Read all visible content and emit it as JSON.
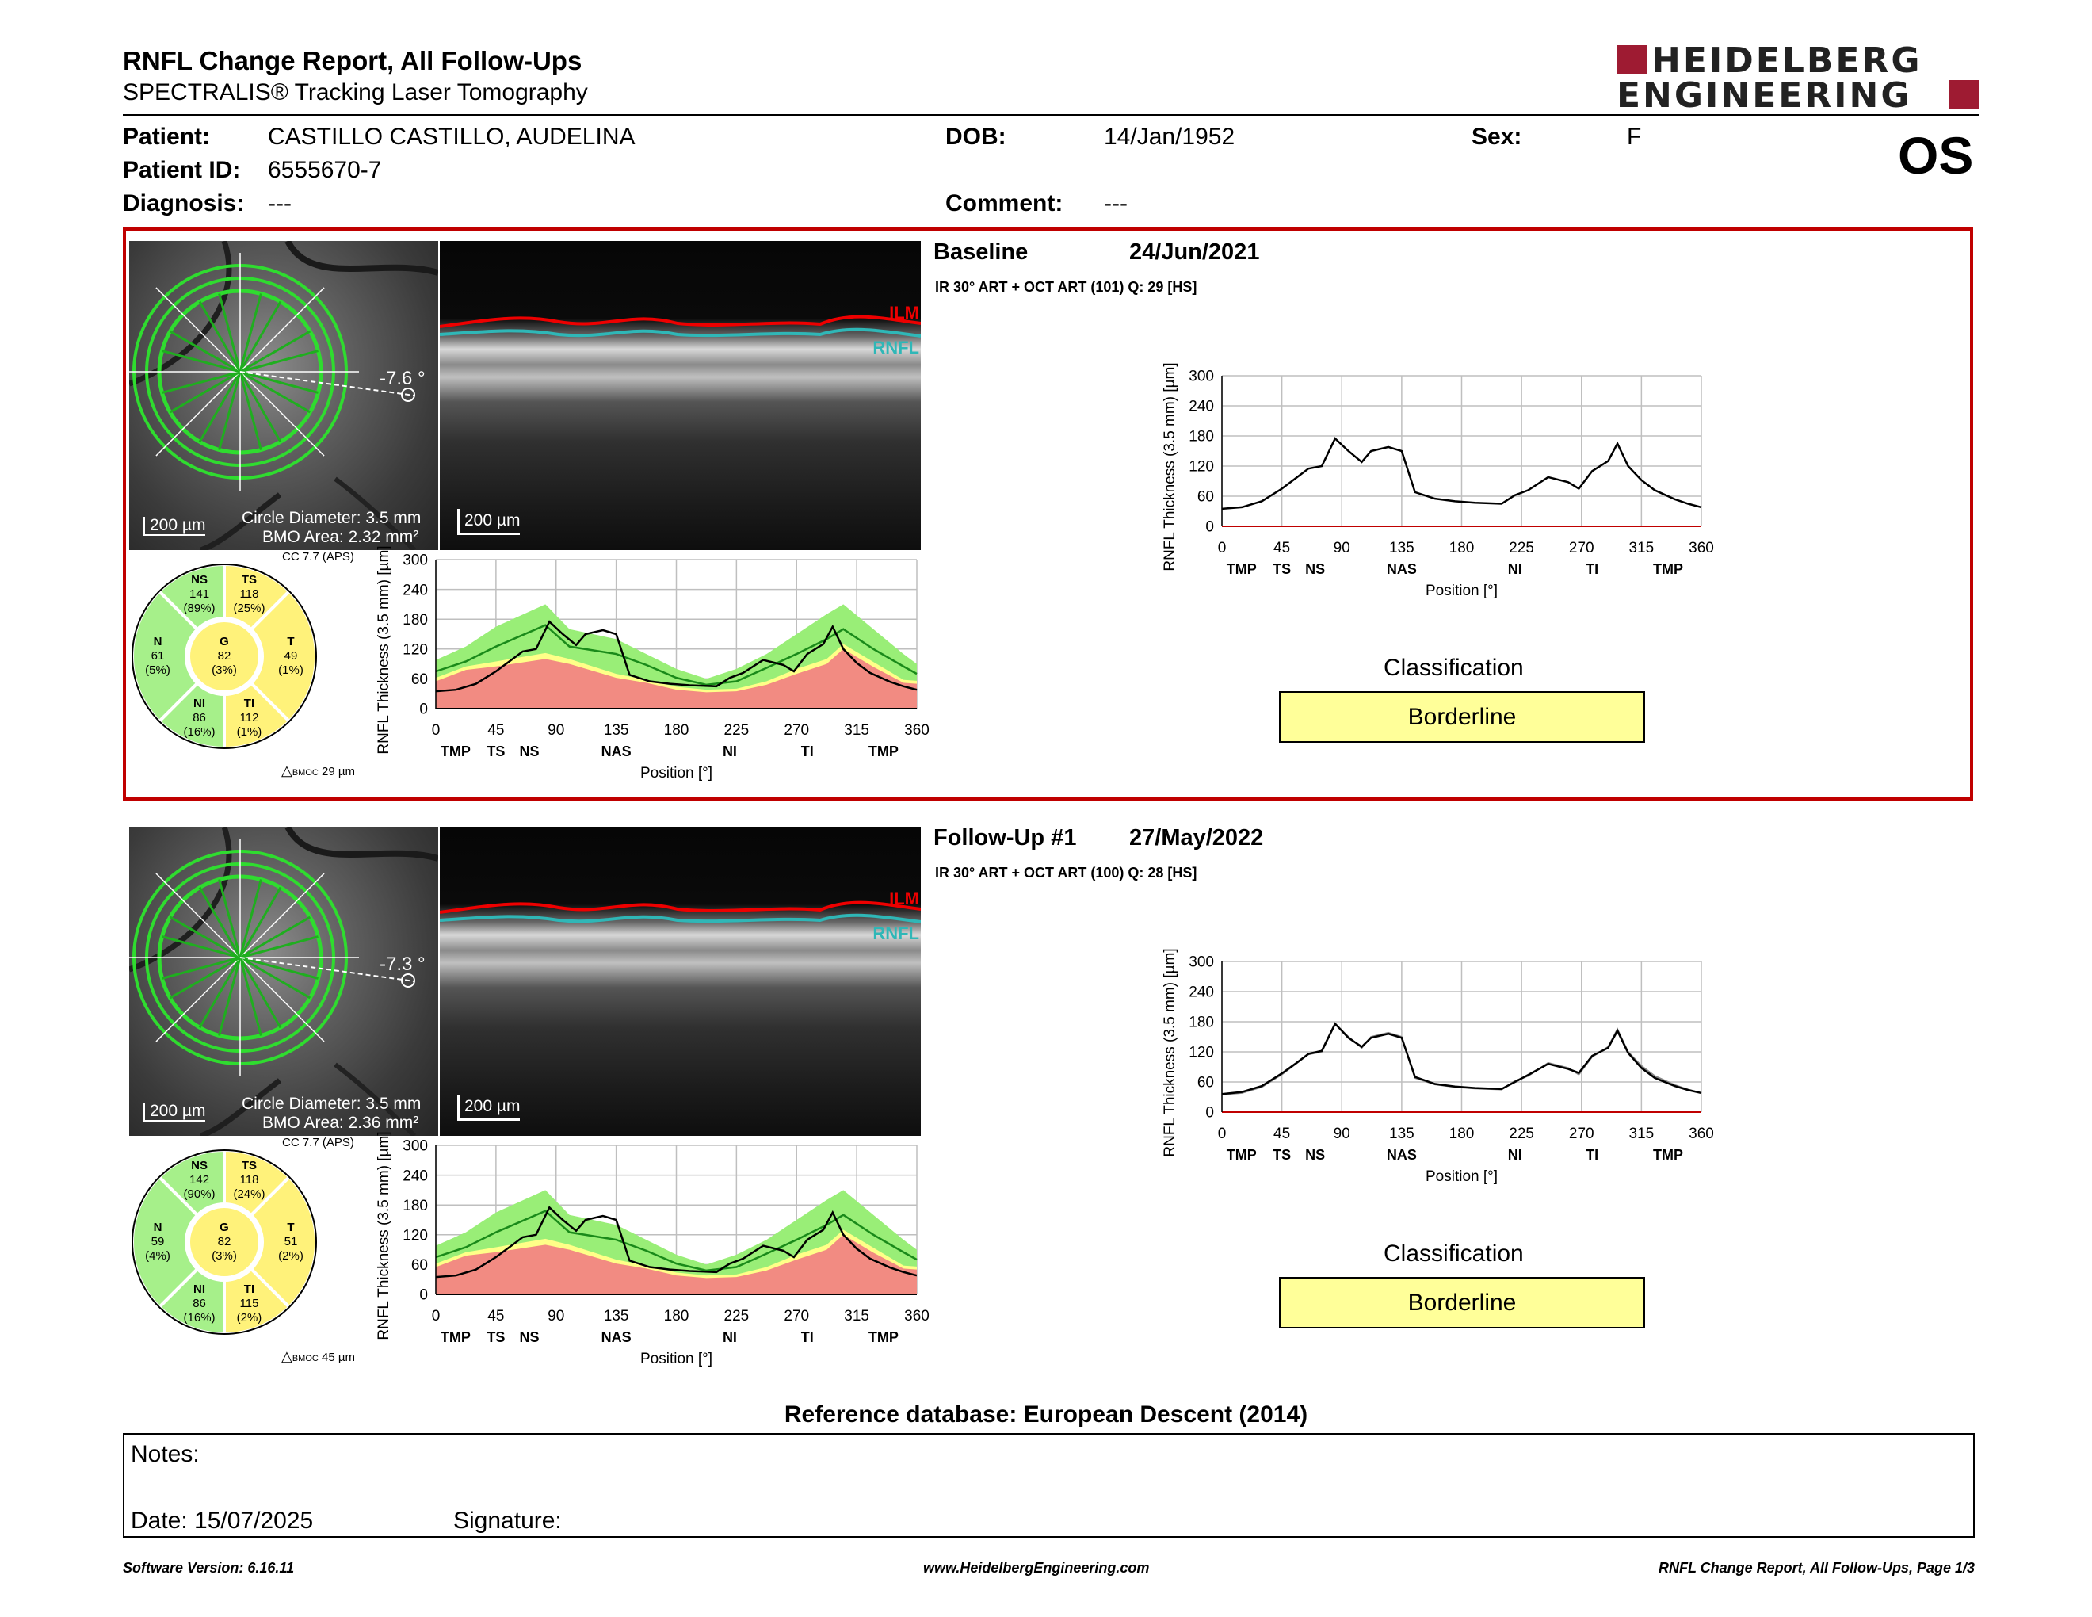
{
  "header": {
    "title": "RNFL Change Report, All Follow-Ups",
    "subtitle": "SPECTRALIS® Tracking Laser Tomography",
    "logo_line1": "HEIDELBERG",
    "logo_line2": "ENGINEERING",
    "eye": "OS"
  },
  "patient": {
    "patient_label": "Patient:",
    "patient_value": "CASTILLO CASTILLO, AUDELINA",
    "id_label": "Patient ID:",
    "id_value": "6555670-7",
    "diagnosis_label": "Diagnosis:",
    "diagnosis_value": "---",
    "dob_label": "DOB:",
    "dob_value": "14/Jan/1952",
    "comment_label": "Comment:",
    "comment_value": "---",
    "sex_label": "Sex:",
    "sex_value": "F"
  },
  "exams": [
    {
      "heading": "Baseline",
      "date": "24/Jun/2021",
      "acquisition": "IR 30° ART + OCT ART (101) Q: 29 [HS]",
      "angle": "-7.6 °",
      "scale_fundus": "200 µm",
      "scale_oct": "200 µm",
      "circle_diameter": "Circle Diameter: 3.5 mm",
      "bmo_area": "BMO Area: 2.32 mm²",
      "cc": "CC 7.7 (APS)",
      "bmoc_prefix": "BMOC",
      "bmoc_value": "29 µm",
      "classification_label": "Classification",
      "classification": "Borderline",
      "sectors": {
        "NS": {
          "name": "NS",
          "value": "141",
          "pct": "(89%)"
        },
        "TS": {
          "name": "TS",
          "value": "118",
          "pct": "(25%)"
        },
        "N": {
          "name": "N",
          "value": "61",
          "pct": "(5%)"
        },
        "G": {
          "name": "G",
          "value": "82",
          "pct": "(3%)"
        },
        "T": {
          "name": "T",
          "value": "49",
          "pct": "(1%)"
        },
        "NI": {
          "name": "NI",
          "value": "86",
          "pct": "(16%)"
        },
        "TI": {
          "name": "TI",
          "value": "112",
          "pct": "(1%)"
        }
      }
    },
    {
      "heading": "Follow-Up #1",
      "date": "27/May/2022",
      "acquisition": "IR 30° ART + OCT ART (100) Q: 28 [HS]",
      "angle": "-7.3 °",
      "scale_fundus": "200 µm",
      "scale_oct": "200 µm",
      "circle_diameter": "Circle Diameter: 3.5 mm",
      "bmo_area": "BMO Area: 2.36 mm²",
      "cc": "CC 7.7 (APS)",
      "bmoc_prefix": "BMOC",
      "bmoc_value": "45 µm",
      "classification_label": "Classification",
      "classification": "Borderline",
      "sectors": {
        "NS": {
          "name": "NS",
          "value": "142",
          "pct": "(90%)"
        },
        "TS": {
          "name": "TS",
          "value": "118",
          "pct": "(24%)"
        },
        "N": {
          "name": "N",
          "value": "59",
          "pct": "(4%)"
        },
        "G": {
          "name": "G",
          "value": "82",
          "pct": "(3%)"
        },
        "T": {
          "name": "T",
          "value": "51",
          "pct": "(2%)"
        },
        "NI": {
          "name": "NI",
          "value": "86",
          "pct": "(16%)"
        },
        "TI": {
          "name": "TI",
          "value": "115",
          "pct": "(2%)"
        }
      }
    }
  ],
  "oct_labels": {
    "ilm": "ILM",
    "rnfl": "RNFL"
  },
  "colors": {
    "accent_red": "#c00000",
    "normal_green": "#99ee77",
    "borderline_yellow": "#ffff88",
    "outside_red": "#f28b82",
    "brand": "#9e1b32"
  },
  "chart_data": [
    {
      "type": "line",
      "title": "",
      "ylabel": "RNFL Thickness (3.5 mm) [µm]",
      "xlabel": "Position [°]",
      "ylim": [
        0,
        300
      ],
      "xlim": [
        0,
        360
      ],
      "yticks": [
        "0",
        "60",
        "120",
        "180",
        "240",
        "300"
      ],
      "xticks": [
        "0",
        "45",
        "90",
        "135",
        "180",
        "225",
        "270",
        "315",
        "360"
      ],
      "sector_labels": [
        "TMP",
        "TS",
        "NS",
        "NAS",
        "NI",
        "TI",
        "TMP"
      ],
      "bands": {
        "outside_limit_upper": [
          55,
          78,
          85,
          100,
          90,
          62,
          52,
          38,
          33,
          35,
          48,
          70,
          90,
          120,
          84,
          52,
          50
        ],
        "borderline_upper": [
          62,
          85,
          95,
          112,
          100,
          70,
          58,
          44,
          38,
          40,
          55,
          80,
          100,
          130,
          94,
          58,
          56
        ],
        "normal_upper": [
          98,
          125,
          165,
          210,
          160,
          140,
          110,
          80,
          60,
          80,
          110,
          150,
          190,
          210,
          160,
          110,
          90
        ],
        "normal_mean": [
          75,
          95,
          125,
          168,
          125,
          110,
          88,
          62,
          48,
          55,
          82,
          110,
          140,
          160,
          120,
          85,
          70
        ],
        "x": [
          0,
          22.5,
          45,
          82,
          100,
          135,
          157.5,
          180,
          202.5,
          225,
          247.5,
          270,
          292.5,
          305,
          327.5,
          350,
          360
        ]
      },
      "series": [
        {
          "name": "Baseline",
          "x": [
            0,
            15,
            30,
            45,
            55,
            65,
            75,
            85,
            95,
            105,
            112,
            125,
            135,
            145,
            160,
            175,
            190,
            210,
            220,
            230,
            245,
            260,
            268,
            278,
            290,
            297,
            305,
            315,
            325,
            340,
            350,
            360
          ],
          "values": [
            35,
            38,
            50,
            75,
            95,
            115,
            120,
            175,
            150,
            128,
            150,
            158,
            150,
            68,
            55,
            50,
            47,
            45,
            62,
            72,
            98,
            88,
            75,
            110,
            130,
            165,
            120,
            92,
            72,
            54,
            45,
            38
          ]
        }
      ]
    },
    {
      "type": "line",
      "title": "",
      "ylabel": "RNFL Thickness (3.5 mm) [µm]",
      "xlabel": "Position [°]",
      "ylim": [
        0,
        300
      ],
      "xlim": [
        0,
        360
      ],
      "yticks": [
        "0",
        "60",
        "120",
        "180",
        "240",
        "300"
      ],
      "xticks": [
        "0",
        "45",
        "90",
        "135",
        "180",
        "225",
        "270",
        "315",
        "360"
      ],
      "sector_labels": [
        "TMP",
        "TS",
        "NS",
        "NAS",
        "NI",
        "TI",
        "TMP"
      ],
      "series": [
        {
          "name": "Baseline",
          "x": [
            0,
            15,
            30,
            45,
            55,
            65,
            75,
            85,
            95,
            105,
            112,
            125,
            135,
            145,
            160,
            175,
            190,
            210,
            220,
            230,
            245,
            260,
            268,
            278,
            290,
            297,
            305,
            315,
            325,
            340,
            350,
            360
          ],
          "values": [
            35,
            38,
            50,
            75,
            95,
            115,
            120,
            175,
            150,
            128,
            150,
            158,
            150,
            68,
            55,
            50,
            47,
            45,
            62,
            72,
            98,
            88,
            75,
            110,
            130,
            165,
            120,
            92,
            72,
            54,
            45,
            38
          ]
        },
        {
          "name": "Follow-Up #1",
          "x": [
            0,
            15,
            30,
            45,
            55,
            65,
            75,
            85,
            95,
            105,
            112,
            125,
            135,
            145,
            160,
            175,
            190,
            210,
            220,
            230,
            245,
            260,
            268,
            278,
            290,
            297,
            305,
            315,
            325,
            340,
            350,
            360
          ],
          "values": [
            36,
            40,
            52,
            77,
            96,
            116,
            122,
            176,
            148,
            130,
            148,
            156,
            148,
            70,
            56,
            51,
            48,
            46,
            60,
            74,
            96,
            86,
            78,
            112,
            128,
            162,
            118,
            88,
            68,
            52,
            44,
            38
          ]
        }
      ]
    }
  ],
  "reference_db": "Reference database: European Descent (2014)",
  "notes": {
    "notes_label": "Notes:",
    "date_label": "Date: 15/07/2025",
    "signature_label": "Signature:"
  },
  "footer": {
    "software": "Software Version: 6.16.11",
    "website": "www.HeidelbergEngineering.com",
    "page": "RNFL Change Report, All Follow-Ups, Page 1/3"
  }
}
